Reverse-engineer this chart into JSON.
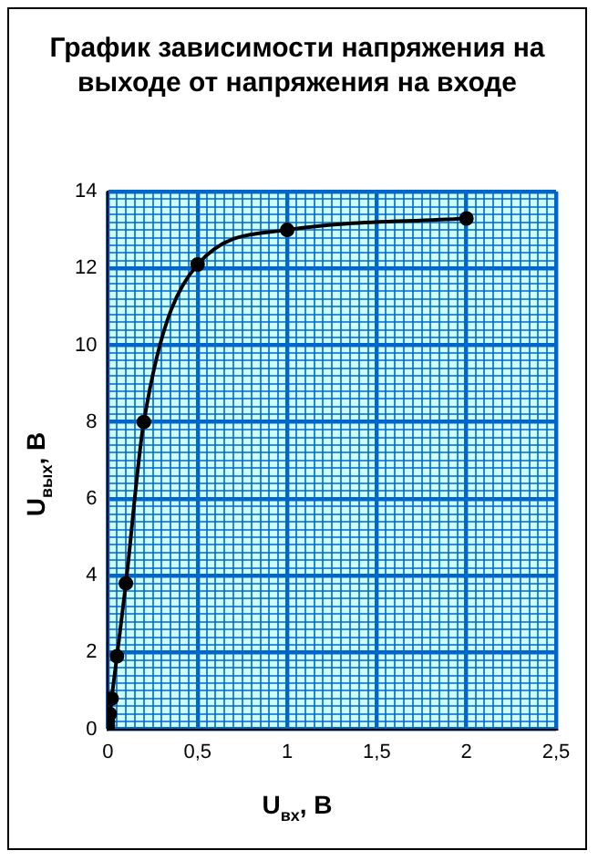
{
  "chart_data": {
    "type": "line",
    "title": "График зависимости напряжения на выходе от напряжения на входе",
    "xlabel": "U$_{вх}$, В",
    "ylabel": "U$_{вых}$, В",
    "x": [
      0,
      0,
      0.01,
      0.02,
      0.05,
      0.1,
      0.2,
      0.5,
      1,
      2
    ],
    "series": [
      {
        "color": "#000000",
        "values": [
          0.1,
          0.2,
          0.4,
          0.8,
          1.9,
          3.8,
          8,
          12.1,
          13,
          13.3
        ]
      }
    ],
    "xlim": [
      0,
      2.5
    ],
    "xticks": [
      0,
      {
        "value": 0.05,
        "label": null
      },
      {
        "value": 0.1,
        "label": null
      },
      {
        "value": 0.15,
        "label": null
      },
      {
        "value": 0.2,
        "label": null
      },
      {
        "value": 0.25,
        "label": null
      },
      {
        "value": 0.3,
        "label": null
      },
      {
        "value": 0.35,
        "label": null
      },
      {
        "value": 0.4,
        "label": null
      },
      {
        "value": 0.45,
        "label": null
      },
      {
        "value": 0.5,
        "label": "0,5"
      },
      {
        "value": 0.55,
        "label": null
      },
      {
        "value": 0.6,
        "label": null
      },
      {
        "value": 0.65,
        "label": null
      },
      {
        "value": 0.7,
        "label": null
      },
      {
        "value": 0.75,
        "label": null
      },
      {
        "value": 0.8,
        "label": null
      },
      {
        "value": 0.85,
        "label": null
      },
      {
        "value": 0.9,
        "label": null
      },
      {
        "value": 0.95,
        "label": null
      },
      1,
      {
        "value": 1.05,
        "label": null
      },
      {
        "value": 1.1,
        "label": null
      },
      {
        "value": 1.15,
        "label": null
      },
      {
        "value": 1.2,
        "label": null
      },
      {
        "value": 1.25,
        "label": null
      },
      {
        "value": 1.3,
        "label": null
      },
      {
        "value": 1.35,
        "label": null
      },
      {
        "value": 1.4,
        "label": null
      },
      {
        "value": 1.45,
        "label": null
      },
      {
        "value": 1.5,
        "label": "1,5"
      },
      {
        "value": 1.55,
        "label": null
      },
      {
        "value": 1.6,
        "label": null
      },
      {
        "value": 1.65,
        "label": null
      },
      {
        "value": 1.7,
        "label": null
      },
      {
        "value": 1.75,
        "label": null
      },
      {
        "value": 1.8,
        "label": null
      },
      {
        "value": 1.85,
        "label": null
      },
      {
        "value": 1.9,
        "label": null
      },
      {
        "value": 1.95,
        "label": null
      },
      2,
      {
        "value": 2.05,
        "label": null
      },
      {
        "value": 2.1,
        "label": null
      },
      {
        "value": 2.15,
        "label": null
      },
      {
        "value": 2.2,
        "label": null
      },
      {
        "value": 2.25,
        "label": null
      },
      {
        "value": 2.3,
        "label": null
      },
      {
        "value": 2.35,
        "label": null
      },
      {
        "value": 2.4,
        "label": null
      },
      {
        "value": 2.45,
        "label": null
      },
      {
        "value": 2.5,
        "label": "2,5"
      }
    ],
    "ylim": [
      0,
      14
    ],
    "yticks": [
      0,
      {
        "value": 0.2,
        "label": null
      },
      {
        "value": 0.4,
        "label": null
      },
      {
        "value": 0.6,
        "label": null
      },
      {
        "value": 0.8,
        "label": null
      },
      {
        "value": 1,
        "label": null
      },
      {
        "value": 1.2,
        "label": null
      },
      {
        "value": 1.4,
        "label": null
      },
      {
        "value": 1.6,
        "label": null
      },
      {
        "value": 1.8,
        "label": null
      },
      2,
      {
        "value": 2.2,
        "label": null
      },
      {
        "value": 2.4,
        "label": null
      },
      {
        "value": 2.6,
        "label": null
      },
      {
        "value": 2.8,
        "label": null
      },
      {
        "value": 3,
        "label": null
      },
      {
        "value": 3.2,
        "label": null
      },
      {
        "value": 3.4,
        "label": null
      },
      {
        "value": 3.6,
        "label": null
      },
      {
        "value": 3.8,
        "label": null
      },
      4,
      {
        "value": 4.2,
        "label": null
      },
      {
        "value": 4.4,
        "label": null
      },
      {
        "value": 4.6,
        "label": null
      },
      {
        "value": 4.8,
        "label": null
      },
      {
        "value": 5,
        "label": null
      },
      {
        "value": 5.2,
        "label": null
      },
      {
        "value": 5.4,
        "label": null
      },
      {
        "value": 5.6,
        "label": null
      },
      {
        "value": 5.8,
        "label": null
      },
      6,
      {
        "value": 6.2,
        "label": null
      },
      {
        "value": 6.4,
        "label": null
      },
      {
        "value": 6.6,
        "label": null
      },
      {
        "value": 6.8,
        "label": null
      },
      {
        "value": 7,
        "label": null
      },
      {
        "value": 7.2,
        "label": null
      },
      {
        "value": 7.4,
        "label": null
      },
      {
        "value": 7.6,
        "label": null
      },
      {
        "value": 7.8,
        "label": null
      },
      8,
      {
        "value": 8.2,
        "label": null
      },
      {
        "value": 8.4,
        "label": null
      },
      {
        "value": 8.6,
        "label": null
      },
      {
        "value": 8.8,
        "label": null
      },
      {
        "value": 9,
        "label": null
      },
      {
        "value": 9.2,
        "label": null
      },
      {
        "value": 9.4,
        "label": null
      },
      {
        "value": 9.6,
        "label": null
      },
      {
        "value": 9.8,
        "label": null
      },
      10,
      {
        "value": 10.2,
        "label": null
      },
      {
        "value": 10.4,
        "label": null
      },
      {
        "value": 10.6,
        "label": null
      },
      {
        "value": 10.8,
        "label": null
      },
      {
        "value": 11,
        "label": null
      },
      {
        "value": 11.2,
        "label": null
      },
      {
        "value": 11.4,
        "label": null
      },
      {
        "value": 11.6,
        "label": null
      },
      {
        "value": 11.8,
        "label": null
      },
      12,
      {
        "value": 12.2,
        "label": null
      },
      {
        "value": 12.4,
        "label": null
      },
      {
        "value": 12.6,
        "label": null
      },
      {
        "value": 12.8,
        "label": null
      },
      {
        "value": 13,
        "label": null
      },
      {
        "value": 13.2,
        "label": null
      },
      {
        "value": 13.4,
        "label": null
      },
      {
        "value": 13.6,
        "label": null
      },
      {
        "value": 13.8,
        "label": null
      },
      14
    ],
    "grid": true,
    "legend": false,
    "marker": "circle",
    "line_style": "solid"
  }
}
